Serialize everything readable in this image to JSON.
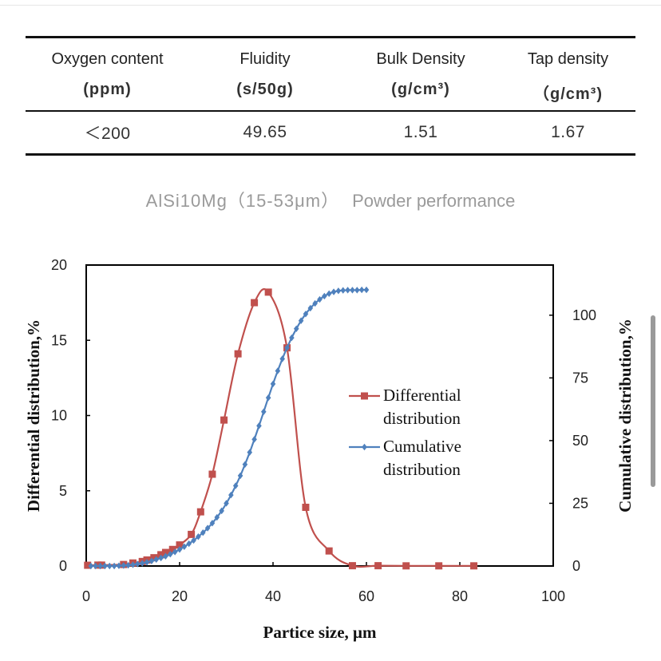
{
  "table": {
    "headers": [
      {
        "name": "Oxygen content",
        "unit": "(ppm)"
      },
      {
        "name": "Fluidity",
        "unit": "(s/50g)"
      },
      {
        "name": "Bulk Density",
        "unit": "(g/cm³)"
      },
      {
        "name": "Tap density",
        "unit": "（g/cm³)"
      }
    ],
    "row": [
      "＜200",
      "49.65",
      "1.51",
      "1.67"
    ]
  },
  "caption": {
    "material": "AlSi10Mg（15-53μm）",
    "label": "Powder performance"
  },
  "chart_data": {
    "type": "line",
    "xlabel": "Partice size, μm",
    "ylabel": "Differential distribution,%",
    "y2label": "Cumulative distribution,%",
    "xlim": [
      0,
      100
    ],
    "ylim": [
      0,
      20
    ],
    "y2lim": [
      0,
      120
    ],
    "x_ticks": [
      "0",
      "20",
      "40",
      "60",
      "80",
      "100"
    ],
    "y_ticks": [
      "0",
      "5",
      "10",
      "15",
      "20"
    ],
    "y2_ticks": [
      "0",
      "25",
      "50",
      "75",
      "100"
    ],
    "grid": false,
    "legend_position": "right",
    "series": [
      {
        "name": "Differential distribution",
        "axis": "left",
        "color": "#c0504d",
        "marker": "square",
        "x": [
          0.3,
          2.5,
          3.3,
          8,
          10,
          12,
          13,
          14.5,
          16,
          17,
          18.5,
          20,
          22.5,
          24.5,
          27,
          29.5,
          32.5,
          36,
          39,
          43,
          47,
          52,
          57,
          62.5,
          68.5,
          75.5,
          83
        ],
        "values": [
          0.05,
          0.06,
          0.06,
          0.1,
          0.2,
          0.3,
          0.4,
          0.55,
          0.75,
          0.9,
          1.1,
          1.4,
          2.1,
          3.6,
          6.1,
          9.7,
          14.1,
          17.5,
          18.2,
          14.5,
          3.9,
          1.0,
          0.02,
          0.02,
          0.01,
          0.01,
          0.01
        ]
      },
      {
        "name": "Cumulative distribution",
        "axis": "right",
        "color": "#4f81bd",
        "marker": "diamond",
        "x": [
          1,
          2,
          3,
          4,
          5,
          6,
          7,
          8,
          9,
          10,
          11,
          12,
          13,
          14,
          15,
          16,
          17,
          18,
          19,
          20,
          21,
          22,
          23,
          24,
          25,
          26,
          27,
          28,
          29,
          30,
          31,
          32,
          33,
          34,
          35,
          36,
          37,
          38,
          39,
          40,
          41,
          42,
          43,
          44,
          45,
          46,
          47,
          48,
          49,
          50,
          51,
          52,
          53,
          54,
          55,
          56,
          57,
          58,
          59,
          60
        ],
        "values": [
          0,
          0,
          0,
          0,
          0,
          0,
          0.1,
          0.2,
          0.3,
          0.5,
          0.8,
          1.1,
          1.5,
          2,
          2.6,
          3.2,
          3.9,
          4.7,
          5.6,
          6.6,
          7.7,
          8.9,
          10.2,
          11.7,
          13.3,
          15.1,
          17.1,
          19.4,
          22,
          25,
          28.3,
          32,
          36,
          40.5,
          45.3,
          50.5,
          55.9,
          61.5,
          67.1,
          72.6,
          77.8,
          82.6,
          87,
          91,
          94.6,
          97.8,
          100.5,
          102.8,
          104.7,
          106.3,
          107.6,
          108.6,
          109.3,
          109.7,
          109.9,
          110,
          110,
          110,
          110.1,
          110.1
        ]
      }
    ]
  }
}
